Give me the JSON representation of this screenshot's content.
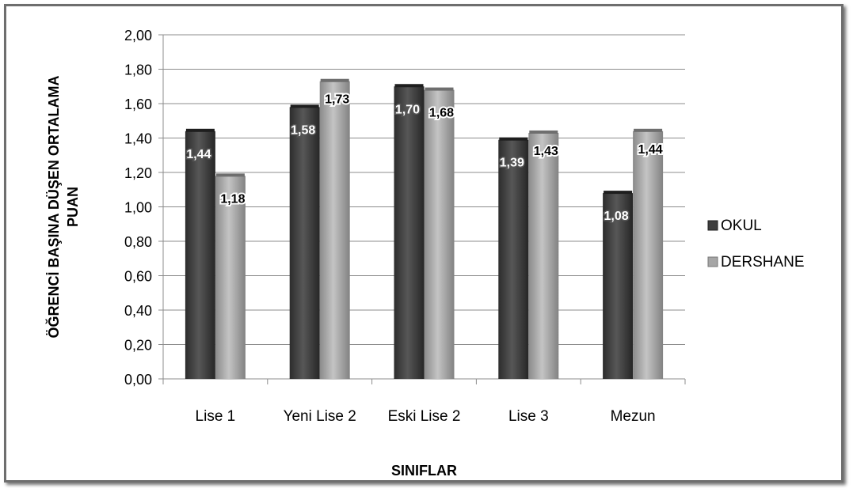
{
  "chart_data": {
    "type": "bar",
    "categories": [
      "Lise 1",
      "Yeni Lise 2",
      "Eski Lise 2",
      "Lise 3",
      "Mezun"
    ],
    "series": [
      {
        "name": "OKUL",
        "values": [
          1.44,
          1.58,
          1.7,
          1.39,
          1.08
        ],
        "labels": [
          "1,44",
          "1,58",
          "1,70",
          "1,39",
          "1,08"
        ],
        "color": "#3f3f3f"
      },
      {
        "name": "DERSHANE",
        "values": [
          1.18,
          1.73,
          1.68,
          1.43,
          1.44
        ],
        "labels": [
          "1,18",
          "1,73",
          "1,68",
          "1,43",
          "1,44"
        ],
        "color": "#9a9a9a"
      }
    ],
    "xlabel": "SINIFLAR",
    "ylabel_lines": [
      "ÖĞRENCİ BAŞINA DÜŞEN ORTALAMA",
      "PUAN"
    ],
    "ylim": [
      0,
      2
    ],
    "yticks": [
      0,
      0.2,
      0.4,
      0.6,
      0.8,
      1.0,
      1.2,
      1.4,
      1.6,
      1.8,
      2.0
    ],
    "ytick_labels": [
      "0,00",
      "0,20",
      "0,40",
      "0,60",
      "0,80",
      "1,00",
      "1,20",
      "1,40",
      "1,60",
      "1,80",
      "2,00"
    ],
    "grid": true,
    "legend_position": "right"
  }
}
